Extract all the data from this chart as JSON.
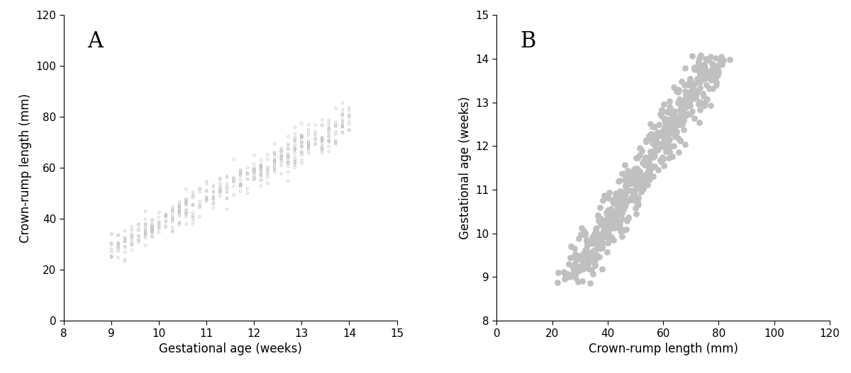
{
  "panel_A": {
    "label": "A",
    "xlabel": "Gestational age (weeks)",
    "ylabel": "Crown-rump length (mm)",
    "xlim": [
      8,
      15
    ],
    "ylim": [
      0,
      120
    ],
    "xticks": [
      8,
      9,
      10,
      11,
      12,
      13,
      14,
      15
    ],
    "yticks": [
      0,
      20,
      40,
      60,
      80,
      100,
      120
    ],
    "marker_size": 2.5,
    "marker_facecolor": "none",
    "marker_edgecolor": "#c0c0c0",
    "marker_linewidth": 0.5
  },
  "panel_B": {
    "label": "B",
    "xlabel": "Crown-rump length (mm)",
    "ylabel": "Gestational age (weeks)",
    "xlim": [
      0,
      120
    ],
    "ylim": [
      8,
      15
    ],
    "xticks": [
      0,
      20,
      40,
      60,
      80,
      100,
      120
    ],
    "yticks": [
      8,
      9,
      10,
      11,
      12,
      13,
      14,
      15
    ],
    "marker_size": 6,
    "marker_facecolor": "#c0c0c0",
    "marker_edgecolor": "#c0c0c0",
    "marker_linewidth": 0.3
  },
  "background_color": "#ffffff",
  "tick_color": "#000000",
  "label_fontsize": 12,
  "panel_label_fontsize": 22,
  "tick_fontsize": 11,
  "seed_A": 1234,
  "seed_B": 5678,
  "crl_slope": 10.0,
  "crl_intercept": -62.0,
  "crl_sd_base": 3.0,
  "n_per_day_min": 8,
  "n_per_day_max": 20,
  "n_per_day_B_min": 10,
  "n_per_day_B_max": 25,
  "ga_spread_B": 0.08
}
